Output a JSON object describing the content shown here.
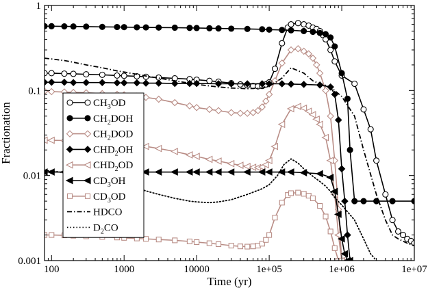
{
  "chart_data": {
    "type": "line",
    "xlabel": "Time (yr)",
    "ylabel": "Fractionation",
    "xscale": "log",
    "yscale": "log",
    "xlim": [
      80,
      10000000
    ],
    "ylim": [
      0.001,
      1
    ],
    "x_ticks": [
      100,
      1000,
      10000,
      100000,
      1000000,
      10000000
    ],
    "x_tick_labels": [
      "100",
      "1000",
      "10000",
      "1e+05",
      "1e+06",
      "1e+07"
    ],
    "y_ticks": [
      0.001,
      0.01,
      0.1,
      1
    ],
    "y_tick_labels": [
      "0.001",
      "0.01",
      "0.1",
      "1"
    ],
    "grid": false,
    "legend_position": "left-middle",
    "series": [
      {
        "name": "CH3OD",
        "name_base": "CH",
        "name_sub": "3",
        "name_tail": "OD",
        "color": "#000000",
        "marker": "circle-open",
        "dash": "solid",
        "x": [
          80,
          100,
          150,
          200,
          300,
          500,
          800,
          1000,
          1500,
          2000,
          3000,
          5000,
          8000,
          10000,
          15000,
          20000,
          30000,
          40000,
          50000,
          60000,
          70000,
          80000,
          90000,
          100000,
          120000,
          150000,
          180000,
          200000,
          250000,
          300000,
          350000,
          400000,
          450000,
          500000,
          550000,
          600000,
          700000,
          800000,
          1000000,
          1500000,
          2000000,
          2500000,
          3000000,
          4000000,
          5000000,
          6000000,
          7000000,
          8000000,
          9000000,
          10000000
        ],
        "y": [
          0.16,
          0.16,
          0.158,
          0.157,
          0.155,
          0.153,
          0.15,
          0.149,
          0.147,
          0.145,
          0.142,
          0.139,
          0.136,
          0.134,
          0.13,
          0.127,
          0.122,
          0.118,
          0.115,
          0.113,
          0.112,
          0.113,
          0.118,
          0.125,
          0.18,
          0.36,
          0.55,
          0.6,
          0.62,
          0.6,
          0.58,
          0.55,
          0.53,
          0.5,
          0.45,
          0.4,
          0.3,
          0.22,
          0.15,
          0.12,
          0.06,
          0.035,
          0.015,
          0.006,
          0.003,
          0.0022,
          0.002,
          0.0018,
          0.0017,
          0.0016
        ]
      },
      {
        "name": "CH2DOH",
        "name_base": "CH",
        "name_sub": "2",
        "name_tail": "DOH",
        "color": "#000000",
        "marker": "circle-filled",
        "dash": "solid",
        "x": [
          80,
          100,
          150,
          200,
          300,
          500,
          800,
          1000,
          1500,
          2000,
          3000,
          5000,
          8000,
          10000,
          15000,
          20000,
          30000,
          50000,
          80000,
          100000,
          150000,
          200000,
          300000,
          400000,
          500000,
          600000,
          700000,
          800000,
          1000000,
          1200000,
          1300000,
          1500000,
          2000000,
          3000000,
          5000000,
          10000000
        ],
        "y": [
          0.57,
          0.57,
          0.568,
          0.566,
          0.564,
          0.56,
          0.558,
          0.556,
          0.554,
          0.552,
          0.55,
          0.548,
          0.545,
          0.543,
          0.54,
          0.537,
          0.534,
          0.53,
          0.525,
          0.52,
          0.515,
          0.51,
          0.5,
          0.49,
          0.475,
          0.46,
          0.42,
          0.33,
          0.16,
          0.08,
          0.02,
          0.005,
          0.005,
          0.005,
          0.005,
          0.005
        ]
      },
      {
        "name": "CH2DOD",
        "name_base": "CH",
        "name_sub": "2",
        "name_tail": "DOD",
        "color": "#b98d86",
        "marker": "diamond-open",
        "dash": "solid",
        "x": [
          80,
          100,
          150,
          200,
          300,
          500,
          800,
          1000,
          1500,
          2000,
          3000,
          5000,
          8000,
          10000,
          15000,
          20000,
          30000,
          40000,
          50000,
          60000,
          70000,
          80000,
          90000,
          100000,
          120000,
          150000,
          200000,
          250000,
          300000,
          350000,
          400000,
          450000,
          500000,
          600000,
          700000,
          800000,
          900000,
          1000000
        ],
        "y": [
          0.098,
          0.097,
          0.096,
          0.095,
          0.094,
          0.092,
          0.09,
          0.089,
          0.086,
          0.083,
          0.079,
          0.072,
          0.066,
          0.063,
          0.06,
          0.058,
          0.055,
          0.054,
          0.054,
          0.055,
          0.058,
          0.064,
          0.075,
          0.09,
          0.13,
          0.21,
          0.3,
          0.31,
          0.29,
          0.27,
          0.24,
          0.2,
          0.16,
          0.1,
          0.05,
          0.015,
          0.004,
          0.001
        ]
      },
      {
        "name": "CHD2OH",
        "name_base": "CHD",
        "name_sub": "2",
        "name_tail": "OH",
        "color": "#000000",
        "marker": "diamond-filled",
        "dash": "solid",
        "x": [
          80,
          100,
          150,
          200,
          300,
          500,
          800,
          1000,
          1500,
          2000,
          3000,
          5000,
          8000,
          10000,
          20000,
          30000,
          50000,
          80000,
          100000,
          150000,
          200000,
          300000,
          500000,
          700000,
          800000,
          900000,
          1000000,
          1100000,
          1200000,
          1300000
        ],
        "y": [
          0.125,
          0.125,
          0.125,
          0.124,
          0.124,
          0.124,
          0.123,
          0.123,
          0.123,
          0.122,
          0.122,
          0.121,
          0.121,
          0.121,
          0.12,
          0.12,
          0.12,
          0.12,
          0.12,
          0.12,
          0.119,
          0.118,
          0.116,
          0.11,
          0.09,
          0.045,
          0.012,
          0.005,
          0.002,
          0.001
        ]
      },
      {
        "name": "CHD2OD",
        "name_base": "CHD",
        "name_sub": "2",
        "name_tail": "OD",
        "color": "#b98d86",
        "marker": "triangle-left-open",
        "dash": "solid",
        "x": [
          80,
          100,
          150,
          200,
          300,
          500,
          800,
          1000,
          1500,
          2000,
          3000,
          5000,
          8000,
          10000,
          15000,
          20000,
          30000,
          40000,
          50000,
          60000,
          70000,
          80000,
          90000,
          100000,
          120000,
          150000,
          200000,
          250000,
          300000,
          350000,
          400000,
          450000,
          500000,
          600000,
          700000,
          800000,
          900000,
          1000000
        ],
        "y": [
          0.026,
          0.026,
          0.0258,
          0.0256,
          0.0252,
          0.0245,
          0.0238,
          0.0234,
          0.0226,
          0.022,
          0.0208,
          0.0192,
          0.0175,
          0.0168,
          0.0155,
          0.0148,
          0.0138,
          0.0132,
          0.0128,
          0.0125,
          0.0124,
          0.0126,
          0.0134,
          0.015,
          0.022,
          0.04,
          0.061,
          0.065,
          0.062,
          0.057,
          0.052,
          0.046,
          0.04,
          0.028,
          0.015,
          0.006,
          0.002,
          0.001
        ]
      },
      {
        "name": "CD3OH",
        "name_base": "CD",
        "name_sub": "3",
        "name_tail": "OH",
        "color": "#000000",
        "marker": "triangle-left-filled",
        "dash": "solid",
        "x": [
          80,
          100,
          150,
          200,
          300,
          500,
          800,
          1000,
          1500,
          2000,
          3000,
          5000,
          8000,
          10000,
          15000,
          20000,
          30000,
          50000,
          80000,
          100000,
          150000,
          200000,
          300000,
          500000,
          700000,
          800000,
          900000,
          1000000,
          1100000,
          1200000,
          1300000
        ],
        "y": [
          0.011,
          0.011,
          0.011,
          0.011,
          0.011,
          0.011,
          0.011,
          0.011,
          0.011,
          0.011,
          0.011,
          0.011,
          0.011,
          0.011,
          0.011,
          0.011,
          0.011,
          0.011,
          0.011,
          0.011,
          0.011,
          0.011,
          0.0108,
          0.0105,
          0.0095,
          0.0065,
          0.0035,
          0.0018,
          0.0012,
          0.001,
          0.001
        ]
      },
      {
        "name": "CD3OD",
        "name_base": "CD",
        "name_sub": "3",
        "name_tail": "OD",
        "color": "#b98d86",
        "marker": "square-open",
        "dash": "solid",
        "x": [
          80,
          100,
          150,
          200,
          300,
          500,
          800,
          1000,
          1500,
          2000,
          3000,
          5000,
          8000,
          10000,
          15000,
          20000,
          30000,
          40000,
          50000,
          60000,
          70000,
          80000,
          90000,
          100000,
          120000,
          150000,
          180000,
          200000,
          250000,
          300000,
          350000,
          400000,
          500000,
          600000,
          700000,
          800000,
          900000,
          1000000
        ],
        "y": [
          0.002,
          0.002,
          0.00198,
          0.00196,
          0.00193,
          0.0019,
          0.00187,
          0.00185,
          0.00182,
          0.0018,
          0.00177,
          0.00173,
          0.00168,
          0.00165,
          0.0016,
          0.00156,
          0.0015,
          0.00147,
          0.00146,
          0.00147,
          0.0015,
          0.00158,
          0.00175,
          0.002,
          0.0032,
          0.0048,
          0.0059,
          0.0062,
          0.0063,
          0.0061,
          0.0058,
          0.0054,
          0.0044,
          0.0033,
          0.0022,
          0.0014,
          0.001,
          0.001
        ]
      },
      {
        "name": "HDCO",
        "name_base": "HDCO",
        "name_sub": "",
        "name_tail": "",
        "color": "#000000",
        "marker": "none",
        "dash": "dashdot",
        "x": [
          80,
          100,
          150,
          200,
          300,
          500,
          800,
          1000,
          1500,
          2000,
          3000,
          5000,
          8000,
          10000,
          20000,
          30000,
          50000,
          80000,
          100000,
          150000,
          200000,
          300000,
          400000,
          500000,
          600000,
          700000,
          800000,
          1000000,
          1500000,
          2000000,
          3000000,
          4000000,
          5000000,
          6000000,
          8000000,
          10000000
        ],
        "y": [
          0.24,
          0.235,
          0.225,
          0.215,
          0.2,
          0.185,
          0.17,
          0.165,
          0.155,
          0.148,
          0.14,
          0.13,
          0.122,
          0.118,
          0.11,
          0.107,
          0.105,
          0.107,
          0.112,
          0.14,
          0.185,
          0.16,
          0.13,
          0.12,
          0.115,
          0.11,
          0.1,
          0.085,
          0.05,
          0.02,
          0.006,
          0.003,
          0.002,
          0.0018,
          0.0016,
          0.0015
        ]
      },
      {
        "name": "D2CO",
        "name_base": "D",
        "name_sub": "2",
        "name_tail": "CO",
        "color": "#000000",
        "marker": "none",
        "dash": "dotted",
        "x": [
          80,
          100,
          150,
          200,
          300,
          500,
          800,
          1000,
          1500,
          2000,
          3000,
          5000,
          8000,
          10000,
          15000,
          20000,
          30000,
          50000,
          80000,
          100000,
          130000,
          160000,
          200000,
          250000,
          300000,
          400000,
          500000,
          600000,
          700000,
          800000,
          1000000,
          1500000,
          2000000,
          2500000,
          3000000
        ],
        "y": [
          0.0115,
          0.0113,
          0.0108,
          0.0104,
          0.0098,
          0.009,
          0.0082,
          0.0078,
          0.0071,
          0.0066,
          0.006,
          0.0054,
          0.005,
          0.0049,
          0.0048,
          0.0049,
          0.0052,
          0.006,
          0.007,
          0.0078,
          0.01,
          0.0135,
          0.0157,
          0.014,
          0.012,
          0.0098,
          0.0085,
          0.0075,
          0.0065,
          0.0055,
          0.0045,
          0.003,
          0.0018,
          0.0012,
          0.001
        ]
      }
    ]
  }
}
